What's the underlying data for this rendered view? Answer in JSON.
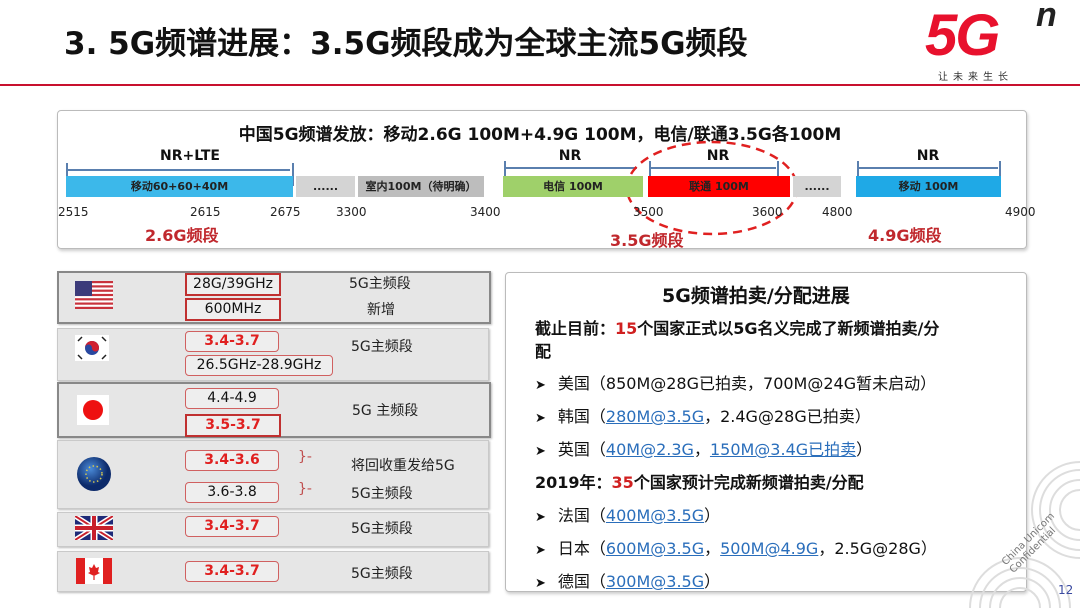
{
  "title": "3. 5G频谱进展：3.5G频段成为全球主流5G频段",
  "logo": {
    "main": "5G",
    "sup": "n",
    "slogan": "让未来生长",
    "brand_color": "#e8112d"
  },
  "spectrum": {
    "title": "中国5G频谱发放：移动2.6G 100M+4.9G 100M，电信/联通3.5G各100M",
    "tech_labels": [
      "NR+LTE",
      "NR",
      "NR",
      "NR"
    ],
    "segments": [
      {
        "label": "移动60+60+40M",
        "color": "#3cb8ea"
      },
      {
        "label": "......",
        "color": "#d4d4d4"
      },
      {
        "label": "室内100M（待明确）",
        "color": "#bdbdbd"
      },
      {
        "label": "电信 100M",
        "color": "#9fd06a"
      },
      {
        "label": "联通 100M",
        "color": "#ff0000"
      },
      {
        "label": "......",
        "color": "#d4d4d4"
      },
      {
        "label": "移动 100M",
        "color": "#1fa9e6"
      }
    ],
    "ticks": [
      "2515",
      "2615",
      "2675",
      "3300",
      "3400",
      "3500",
      "3600",
      "4800",
      "4900"
    ],
    "bands": [
      "2.6G频段",
      "3.5G频段",
      "4.9G频段"
    ]
  },
  "countries": [
    {
      "flag": "us-flag",
      "bands": [
        "28G/39GHz",
        "600MHz"
      ],
      "notes": [
        "5G主频段",
        "新增"
      ]
    },
    {
      "flag": "korea-flag",
      "bands": [
        "3.4-3.7",
        "26.5GHz-28.9GHz"
      ],
      "notes": [
        "5G主频段"
      ]
    },
    {
      "flag": "japan-flag",
      "bands": [
        "4.4-4.9",
        "3.5-3.7"
      ],
      "notes": [
        "5G 主频段"
      ]
    },
    {
      "flag": "eu-flag",
      "bands": [
        "3.4-3.6",
        "3.6-3.8"
      ],
      "notes": [
        "将回收重发给5G",
        "5G主频段"
      ]
    },
    {
      "flag": "uk-flag",
      "bands": [
        "3.4-3.7"
      ],
      "notes": [
        "5G主频段"
      ]
    },
    {
      "flag": "canada-flag",
      "bands": [
        "3.4-3.7"
      ],
      "notes": [
        "5G主频段"
      ]
    }
  ],
  "auction": {
    "title": "5G频谱拍卖/分配进展",
    "h1": {
      "pre": "截止目前：",
      "num": "15",
      "post": "个国家正式以5G名义完成了新频谱拍卖/分",
      "post2": "配"
    },
    "items1": [
      {
        "pre": "美国（850M@28G已拍卖，700M@24G暂未启动）"
      },
      {
        "pre": "韩国（",
        "link1": "280M@3.5G",
        "mid": "，2.4G@28G已拍卖）"
      },
      {
        "pre": "英国（",
        "link1": "40M@2.3G",
        "mid": "，",
        "link2": "150M@3.4G已拍卖",
        "end": "）"
      }
    ],
    "h2": {
      "pre": "2019年：",
      "num": "35",
      "post": "个国家预计完成新频谱拍卖/分配"
    },
    "items2": [
      {
        "pre": "法国（",
        "link1": "400M@3.5G",
        "end": "）"
      },
      {
        "pre": "日本（",
        "link1": "600M@3.5G",
        "mid": "，",
        "link2": "500M@4.9G",
        "end": "，2.5G@28G）"
      },
      {
        "pre": "德国（",
        "link1": "300M@3.5G",
        "end": "）"
      }
    ]
  },
  "watermark": [
    "China Unicom",
    "Confidential"
  ],
  "page_number": "12"
}
